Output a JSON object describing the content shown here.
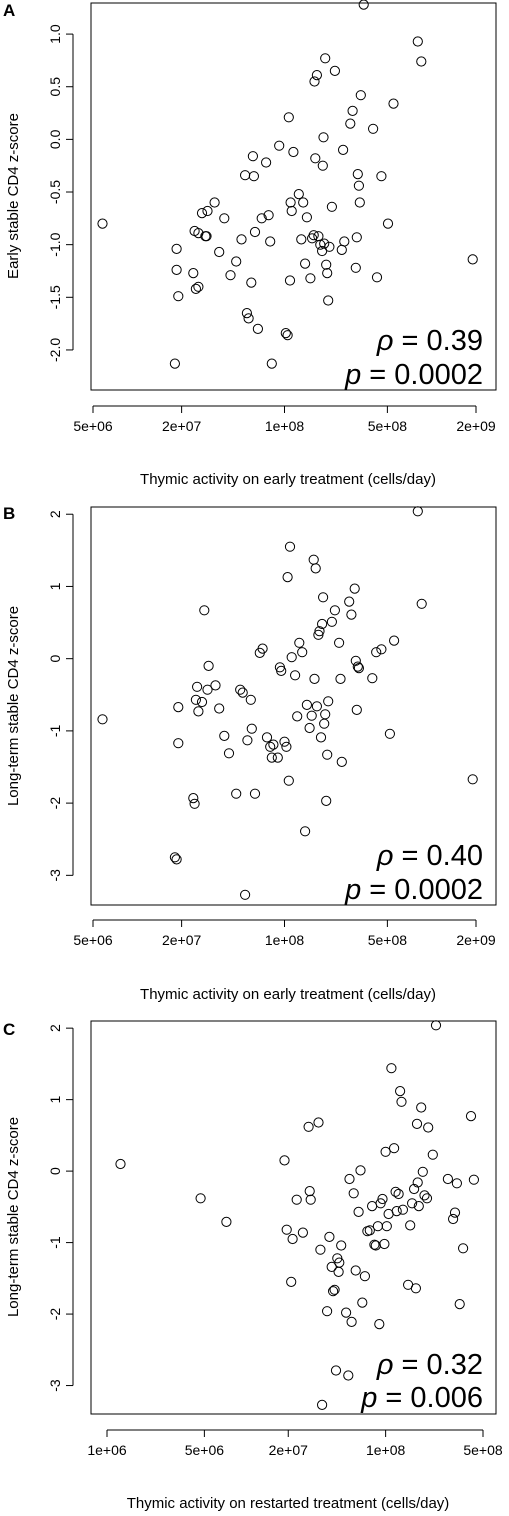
{
  "chart_data": [
    {
      "type": "scatter",
      "panel": "A",
      "xlabel": "Thymic activity on early treatment (cells/day)",
      "ylabel": "Early stable CD4 z-score",
      "xscale": "log",
      "xlim": [
        5000000.0,
        2000000000.0
      ],
      "ylim": [
        -2.2,
        1.3
      ],
      "xticks": [
        5000000.0,
        20000000.0,
        100000000.0,
        500000000.0,
        2000000000.0
      ],
      "xtick_labels": [
        "5e+06",
        "2e+07",
        "1e+08",
        "5e+08",
        "2e+09"
      ],
      "yticks": [
        -2.0,
        -1.5,
        -1.0,
        -0.5,
        0.0,
        0.5,
        1.0
      ],
      "ytick_labels": [
        "-2.0",
        "-1.5",
        "-1.0",
        "-0.5",
        "0.0",
        "0.5",
        "1.0"
      ],
      "rho": "0.39",
      "p": "0.0002",
      "points": [
        [
          5800000.0,
          -0.8
        ],
        [
          18000000.0,
          -2.13
        ],
        [
          18500000.0,
          -1.04
        ],
        [
          18500000.0,
          -1.24
        ],
        [
          19000000.0,
          -1.49
        ],
        [
          24000000.0,
          -1.27
        ],
        [
          24500000.0,
          -0.87
        ],
        [
          25000000.0,
          -1.42
        ],
        [
          26000000.0,
          -1.4
        ],
        [
          26000000.0,
          -0.89
        ],
        [
          27500000.0,
          -0.7
        ],
        [
          29000000.0,
          -0.92
        ],
        [
          29500000.0,
          -0.92
        ],
        [
          30000000.0,
          -0.68
        ],
        [
          33500000.0,
          -0.6
        ],
        [
          36000000.0,
          -1.07
        ],
        [
          39000000.0,
          -0.75
        ],
        [
          43000000.0,
          -1.29
        ],
        [
          47000000.0,
          -1.16
        ],
        [
          51000000.0,
          -0.95
        ],
        [
          54000000.0,
          -0.34
        ],
        [
          55500000.0,
          -1.65
        ],
        [
          57000000.0,
          -1.7
        ],
        [
          59500000.0,
          -1.36
        ],
        [
          61000000.0,
          -0.16
        ],
        [
          62000000.0,
          -0.35
        ],
        [
          63000000.0,
          -0.88
        ],
        [
          66000000.0,
          -1.8
        ],
        [
          70000000.0,
          -0.75
        ],
        [
          75000000.0,
          -0.22
        ],
        [
          78000000.0,
          -0.72
        ],
        [
          80000000.0,
          -0.97
        ],
        [
          82000000.0,
          -2.13
        ],
        [
          92000000.0,
          -0.06
        ],
        [
          102000000.0,
          -1.84
        ],
        [
          105000000.0,
          -1.86
        ],
        [
          107000000.0,
          0.21
        ],
        [
          109000000.0,
          -1.34
        ],
        [
          110000000.0,
          -0.6
        ],
        [
          112000000.0,
          -0.68
        ],
        [
          115000000.0,
          -0.12
        ],
        [
          125000000.0,
          -0.52
        ],
        [
          130000000.0,
          -0.95
        ],
        [
          134000000.0,
          -0.6
        ],
        [
          138000000.0,
          -1.18
        ],
        [
          142000000.0,
          -0.74
        ],
        [
          150000000.0,
          -1.32
        ],
        [
          154000000.0,
          -0.94
        ],
        [
          158000000.0,
          -0.91
        ],
        [
          160000000.0,
          0.55
        ],
        [
          162000000.0,
          -0.18
        ],
        [
          166000000.0,
          0.61
        ],
        [
          170000000.0,
          -0.92
        ],
        [
          175000000.0,
          -1.0
        ],
        [
          180000000.0,
          -1.06
        ],
        [
          182000000.0,
          -0.25
        ],
        [
          184000000.0,
          0.02
        ],
        [
          186000000.0,
          -0.99
        ],
        [
          189000000.0,
          0.77
        ],
        [
          192000000.0,
          -1.19
        ],
        [
          195000000.0,
          -1.27
        ],
        [
          198000000.0,
          -1.53
        ],
        [
          202000000.0,
          -1.02
        ],
        [
          210000000.0,
          -0.64
        ],
        [
          220000000.0,
          0.65
        ],
        [
          245000000.0,
          -1.05
        ],
        [
          250000000.0,
          -0.1
        ],
        [
          255000000.0,
          -0.97
        ],
        [
          280000000.0,
          0.15
        ],
        [
          290000000.0,
          0.27
        ],
        [
          305000000.0,
          -1.22
        ],
        [
          310000000.0,
          -0.93
        ],
        [
          315000000.0,
          -0.33
        ],
        [
          320000000.0,
          -0.44
        ],
        [
          325000000.0,
          -0.6
        ],
        [
          330000000.0,
          0.42
        ],
        [
          345000000.0,
          1.28
        ],
        [
          400000000.0,
          0.1
        ],
        [
          425000000.0,
          -1.31
        ],
        [
          455000000.0,
          -0.35
        ],
        [
          505000000.0,
          -0.8
        ],
        [
          550000000.0,
          0.34
        ],
        [
          805000000.0,
          0.93
        ],
        [
          850000000.0,
          0.74
        ],
        [
          1900000000.0,
          -1.14
        ]
      ]
    },
    {
      "type": "scatter",
      "panel": "B",
      "xlabel": "Thymic activity on early treatment (cells/day)",
      "ylabel": "Long-term stable CD4 z-score",
      "xscale": "log",
      "xlim": [
        5000000.0,
        2000000000.0
      ],
      "ylim": [
        -3.3,
        2.1
      ],
      "xticks": [
        5000000.0,
        20000000.0,
        100000000.0,
        500000000.0,
        2000000000.0
      ],
      "xtick_labels": [
        "5e+06",
        "2e+07",
        "1e+08",
        "5e+08",
        "2e+09"
      ],
      "yticks": [
        -3,
        -2,
        -1,
        0,
        1,
        2
      ],
      "ytick_labels": [
        "-3",
        "-2",
        "-1",
        "0",
        "1",
        "2"
      ],
      "rho": "0.40",
      "p": "0.0002",
      "points": [
        [
          5800000.0,
          -0.84
        ],
        [
          18000000.0,
          -2.75
        ],
        [
          18500000.0,
          -2.78
        ],
        [
          19000000.0,
          -0.67
        ],
        [
          19000000.0,
          -1.17
        ],
        [
          24000000.0,
          -1.93
        ],
        [
          24500000.0,
          -2.01
        ],
        [
          25000000.0,
          -0.57
        ],
        [
          25500000.0,
          -0.39
        ],
        [
          26000000.0,
          -0.73
        ],
        [
          27500000.0,
          -0.6
        ],
        [
          28500000.0,
          0.67
        ],
        [
          30000000.0,
          -0.43
        ],
        [
          30500000.0,
          -0.1
        ],
        [
          34000000.0,
          -0.37
        ],
        [
          36000000.0,
          -0.69
        ],
        [
          39000000.0,
          -1.07
        ],
        [
          42000000.0,
          -1.31
        ],
        [
          47000000.0,
          -1.87
        ],
        [
          50000000.0,
          -0.43
        ],
        [
          52000000.0,
          -0.47
        ],
        [
          54000000.0,
          -3.27
        ],
        [
          56000000.0,
          -1.13
        ],
        [
          59000000.0,
          -0.57
        ],
        [
          60000000.0,
          -0.97
        ],
        [
          63000000.0,
          -1.87
        ],
        [
          68000000.0,
          0.08
        ],
        [
          71000000.0,
          0.14
        ],
        [
          76000000.0,
          -1.09
        ],
        [
          80000000.0,
          -1.22
        ],
        [
          82000000.0,
          -1.37
        ],
        [
          84000000.0,
          -1.19
        ],
        [
          90000000.0,
          -1.37
        ],
        [
          93000000.0,
          -0.12
        ],
        [
          95000000.0,
          -0.17
        ],
        [
          100000000.0,
          -1.15
        ],
        [
          103000000.0,
          -1.22
        ],
        [
          105000000.0,
          1.13
        ],
        [
          107000000.0,
          -1.69
        ],
        [
          109000000.0,
          1.55
        ],
        [
          112000000.0,
          0.02
        ],
        [
          118000000.0,
          -0.23
        ],
        [
          122000000.0,
          -0.8
        ],
        [
          126000000.0,
          0.22
        ],
        [
          132000000.0,
          0.09
        ],
        [
          138000000.0,
          -2.39
        ],
        [
          142000000.0,
          -0.64
        ],
        [
          148000000.0,
          -0.96
        ],
        [
          153000000.0,
          -0.79
        ],
        [
          158000000.0,
          1.37
        ],
        [
          160000000.0,
          -0.28
        ],
        [
          163000000.0,
          1.25
        ],
        [
          166000000.0,
          -0.66
        ],
        [
          170000000.0,
          0.33
        ],
        [
          173000000.0,
          0.38
        ],
        [
          177000000.0,
          -1.09
        ],
        [
          180000000.0,
          0.48
        ],
        [
          183000000.0,
          0.85
        ],
        [
          186000000.0,
          -0.9
        ],
        [
          189000000.0,
          -0.77
        ],
        [
          192000000.0,
          -1.97
        ],
        [
          195000000.0,
          -1.33
        ],
        [
          198000000.0,
          -0.59
        ],
        [
          210000000.0,
          0.51
        ],
        [
          220000000.0,
          0.67
        ],
        [
          235000000.0,
          0.22
        ],
        [
          240000000.0,
          -0.28
        ],
        [
          245000000.0,
          -1.43
        ],
        [
          275000000.0,
          0.79
        ],
        [
          285000000.0,
          0.61
        ],
        [
          300000000.0,
          0.97
        ],
        [
          305000000.0,
          -0.03
        ],
        [
          310000000.0,
          -0.71
        ],
        [
          315000000.0,
          -0.11
        ],
        [
          320000000.0,
          -0.13
        ],
        [
          395000000.0,
          -0.27
        ],
        [
          420000000.0,
          0.09
        ],
        [
          455000000.0,
          0.13
        ],
        [
          520000000.0,
          -1.04
        ],
        [
          555000000.0,
          0.25
        ],
        [
          805000000.0,
          2.04
        ],
        [
          855000000.0,
          0.76
        ],
        [
          1900000000.0,
          -1.67
        ]
      ]
    },
    {
      "type": "scatter",
      "panel": "C",
      "xlabel": "Thymic activity on restarted treatment (cells/day)",
      "ylabel": "Long-term stable CD4 z-score",
      "xscale": "log",
      "xlim": [
        1000000.0,
        500000000.0
      ],
      "ylim": [
        -3.3,
        2.1
      ],
      "xticks": [
        1000000.0,
        5000000.0,
        20000000.0,
        100000000.0,
        500000000.0
      ],
      "xtick_labels": [
        "1e+06",
        "5e+06",
        "2e+07",
        "1e+08",
        "5e+08"
      ],
      "yticks": [
        -3,
        -2,
        -1,
        0,
        1,
        2
      ],
      "ytick_labels": [
        "-3",
        "-2",
        "-1",
        "0",
        "1",
        "2"
      ],
      "rho": "0.32",
      "p": "0.006",
      "points": [
        [
          1250000.0,
          0.1
        ],
        [
          4700000.0,
          -0.38
        ],
        [
          7200000.0,
          -0.71
        ],
        [
          18800000.0,
          0.15
        ],
        [
          19500000.0,
          -0.82
        ],
        [
          21000000.0,
          -1.55
        ],
        [
          21500000.0,
          -0.95
        ],
        [
          23000000.0,
          -0.4
        ],
        [
          25500000.0,
          -0.86
        ],
        [
          28000000.0,
          0.62
        ],
        [
          28500000.0,
          -0.28
        ],
        [
          29000000.0,
          -0.4
        ],
        [
          33000000.0,
          0.68
        ],
        [
          34000000.0,
          -1.1
        ],
        [
          35000000.0,
          -3.27
        ],
        [
          38000000.0,
          -1.96
        ],
        [
          39500000.0,
          -0.92
        ],
        [
          41000000.0,
          -1.34
        ],
        [
          42000000.0,
          -1.68
        ],
        [
          43000000.0,
          -1.66
        ],
        [
          44000000.0,
          -2.79
        ],
        [
          45000000.0,
          -1.22
        ],
        [
          46000000.0,
          -1.41
        ],
        [
          46500000.0,
          -1.28
        ],
        [
          48000000.0,
          -1.04
        ],
        [
          52000000.0,
          -1.98
        ],
        [
          54000000.0,
          -2.86
        ],
        [
          55000000.0,
          -0.11
        ],
        [
          57000000.0,
          -2.11
        ],
        [
          59000000.0,
          -0.31
        ],
        [
          61000000.0,
          -1.39
        ],
        [
          64000000.0,
          -0.57
        ],
        [
          66000000.0,
          0.01
        ],
        [
          68000000.0,
          -1.84
        ],
        [
          71000000.0,
          -1.47
        ],
        [
          74000000.0,
          -0.84
        ],
        [
          77000000.0,
          -0.83
        ],
        [
          80000000.0,
          -0.49
        ],
        [
          83000000.0,
          -1.03
        ],
        [
          85000000.0,
          -1.04
        ],
        [
          88000000.0,
          -0.77
        ],
        [
          90000000.0,
          -2.14
        ],
        [
          92000000.0,
          -0.45
        ],
        [
          95000000.0,
          -0.39
        ],
        [
          98000000.0,
          -1.02
        ],
        [
          100000000.0,
          0.27
        ],
        [
          102000000.0,
          -0.77
        ],
        [
          105000000.0,
          -0.6
        ],
        [
          110000000.0,
          1.44
        ],
        [
          115000000.0,
          0.32
        ],
        [
          118000000.0,
          -0.29
        ],
        [
          120000000.0,
          -0.56
        ],
        [
          124000000.0,
          -0.32
        ],
        [
          127000000.0,
          1.12
        ],
        [
          130000000.0,
          0.97
        ],
        [
          133000000.0,
          -0.54
        ],
        [
          145000000.0,
          -1.59
        ],
        [
          150000000.0,
          -0.76
        ],
        [
          155000000.0,
          -0.45
        ],
        [
          160000000.0,
          -0.25
        ],
        [
          165000000.0,
          -1.64
        ],
        [
          168000000.0,
          0.66
        ],
        [
          170000000.0,
          -0.16
        ],
        [
          173000000.0,
          -0.49
        ],
        [
          180000000.0,
          0.89
        ],
        [
          185000000.0,
          -0.01
        ],
        [
          190000000.0,
          -0.34
        ],
        [
          198000000.0,
          -0.38
        ],
        [
          202000000.0,
          0.61
        ],
        [
          218000000.0,
          0.23
        ],
        [
          230000000.0,
          2.04
        ],
        [
          280000000.0,
          -0.11
        ],
        [
          305000000.0,
          -0.67
        ],
        [
          315000000.0,
          -0.58
        ],
        [
          325000000.0,
          -0.17
        ],
        [
          340000000.0,
          -1.86
        ],
        [
          360000000.0,
          -1.08
        ],
        [
          410000000.0,
          0.77
        ],
        [
          430000000.0,
          -0.12
        ]
      ]
    }
  ]
}
